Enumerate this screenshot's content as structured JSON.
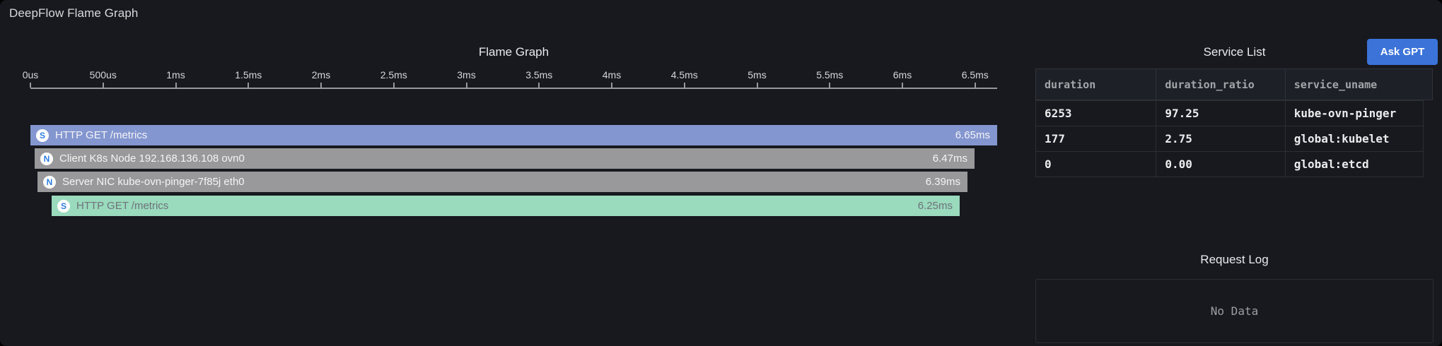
{
  "panel": {
    "title": "DeepFlow Flame Graph"
  },
  "flame_graph": {
    "title": "Flame Graph",
    "axis_ticks": [
      "0us",
      "500us",
      "1ms",
      "1.5ms",
      "2ms",
      "2.5ms",
      "3ms",
      "3.5ms",
      "4ms",
      "4.5ms",
      "5ms",
      "5.5ms",
      "6ms",
      "6.5ms"
    ],
    "bars": [
      {
        "icon": "S",
        "label": "HTTP GET /metrics",
        "duration": "6.65ms"
      },
      {
        "icon": "N",
        "label": "Client K8s Node 192.168.136.108 ovn0",
        "duration": "6.47ms"
      },
      {
        "icon": "N",
        "label": "Server NIC kube-ovn-pinger-7f85j eth0",
        "duration": "6.39ms"
      },
      {
        "icon": "S",
        "label": "HTTP GET /metrics",
        "duration": "6.25ms"
      }
    ]
  },
  "chart_data": {
    "type": "flame",
    "title": "Flame Graph",
    "x_unit": "ms",
    "x_range": [
      0,
      6.65
    ],
    "axis_tick_labels": [
      "0us",
      "500us",
      "1ms",
      "1.5ms",
      "2ms",
      "2.5ms",
      "3ms",
      "3.5ms",
      "4ms",
      "4.5ms",
      "5ms",
      "5.5ms",
      "6ms",
      "6.5ms"
    ],
    "frames": [
      {
        "depth": 0,
        "kind": "S",
        "label": "HTTP GET /metrics",
        "start_ms": 0.0,
        "duration_ms": 6.65
      },
      {
        "depth": 1,
        "kind": "N",
        "label": "Client K8s Node 192.168.136.108 ovn0",
        "start_ms": 0.03,
        "duration_ms": 6.47
      },
      {
        "depth": 2,
        "kind": "N",
        "label": "Server NIC kube-ovn-pinger-7f85j eth0",
        "start_ms": 0.05,
        "duration_ms": 6.39
      },
      {
        "depth": 3,
        "kind": "S",
        "label": "HTTP GET /metrics",
        "start_ms": 0.15,
        "duration_ms": 6.25
      }
    ]
  },
  "service_list": {
    "title": "Service List",
    "ask_gpt_label": "Ask GPT",
    "columns": [
      "duration",
      "duration_ratio",
      "service_uname"
    ],
    "rows": [
      [
        "6253",
        "97.25",
        "kube-ovn-pinger"
      ],
      [
        "177",
        "2.75",
        "global:kubelet"
      ],
      [
        "0",
        "0.00",
        "global:etcd"
      ]
    ]
  },
  "request_log": {
    "title": "Request Log",
    "empty_text": "No Data"
  },
  "colors": {
    "background": "#17191f",
    "system_span_bar": "#8496d0",
    "network_bar": "#99989a",
    "app_span_bar": "#9adabd",
    "icon_letter": "#2f7de0",
    "ask_gpt_button": "#3b73d9"
  }
}
